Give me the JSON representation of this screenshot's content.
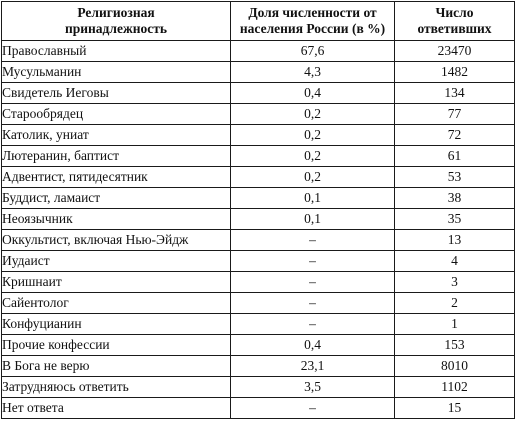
{
  "header": {
    "col_religion": [
      "Религиозная",
      "принадлежность"
    ],
    "col_share": [
      "Доля численности от",
      "населения России (в %)"
    ],
    "col_count": [
      "Число",
      "ответивших"
    ]
  },
  "rows": [
    {
      "name": "Православный",
      "share": "67,6",
      "count": "23470"
    },
    {
      "name": "Мусульманин",
      "share": "4,3",
      "count": "1482"
    },
    {
      "name": "Свидетель Иеговы",
      "share": "0,4",
      "count": "134"
    },
    {
      "name": "Старообрядец",
      "share": "0,2",
      "count": "77"
    },
    {
      "name": "Католик, униат",
      "share": "0,2",
      "count": "72"
    },
    {
      "name": "Лютеранин, баптист",
      "share": "0,2",
      "count": "61"
    },
    {
      "name": "Адвентист, пятидесятник",
      "share": "0,2",
      "count": "53"
    },
    {
      "name": "Буддист, ламаист",
      "share": "0,1",
      "count": "38"
    },
    {
      "name": "Неоязычник",
      "share": "0,1",
      "count": "35"
    },
    {
      "name": "Оккультист, включая Нью-Эйдж",
      "share": "–",
      "count": "13"
    },
    {
      "name": "Иудаист",
      "share": "–",
      "count": "4"
    },
    {
      "name": "Кришнаит",
      "share": "–",
      "count": "3"
    },
    {
      "name": "Сайентолог",
      "share": "–",
      "count": "2"
    },
    {
      "name": "Конфуцианин",
      "share": "–",
      "count": "1"
    },
    {
      "name": "Прочие конфессии",
      "share": "0,4",
      "count": "153"
    },
    {
      "name": "В Бога не верю",
      "share": "23,1",
      "count": "8010"
    },
    {
      "name": "Затрудняюсь ответить",
      "share": "3,5",
      "count": "1102"
    },
    {
      "name": "Нет ответа",
      "share": "–",
      "count": "15"
    }
  ]
}
